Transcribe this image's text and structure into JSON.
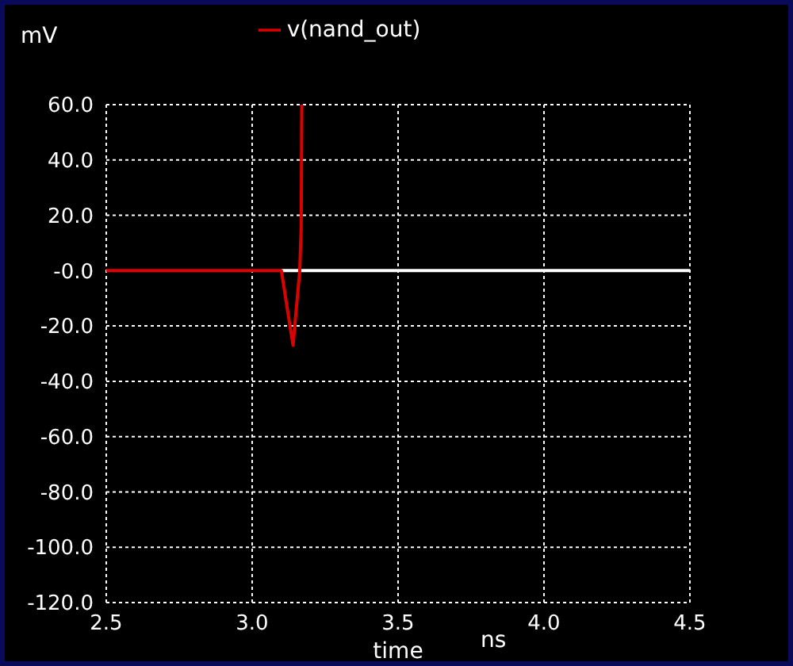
{
  "chart_data": {
    "type": "line",
    "ylabel": "mV",
    "xlabel": "time",
    "annotations": [
      "ns"
    ],
    "series": [
      {
        "color": "#ffffff",
        "x": [
          3.1,
          4.5
        ],
        "values": [
          0,
          0
        ]
      },
      {
        "name": "v(nand_out)",
        "color": "#dd0000",
        "x": [
          2.5,
          3.1,
          3.14,
          3.163,
          3.168,
          3.17
        ],
        "values": [
          0,
          0,
          -27,
          0,
          16,
          60
        ]
      }
    ],
    "xlim": [
      2.5,
      4.5
    ],
    "xticks": [
      {
        "value": 2.5,
        "label": "2.5"
      },
      {
        "value": 3,
        "label": "3.0"
      },
      {
        "value": 3.5,
        "label": "3.5"
      },
      {
        "value": 4,
        "label": "4.0"
      },
      {
        "value": 4.5,
        "label": "4.5"
      }
    ],
    "ylim": [
      -120,
      60
    ],
    "yticks": [
      {
        "value": -120,
        "label": "-120.0"
      },
      {
        "value": -100,
        "label": "-100.0"
      },
      {
        "value": -80,
        "label": "-80.0"
      },
      {
        "value": -60,
        "label": "-60.0"
      },
      {
        "value": -40,
        "label": "-40.0"
      },
      {
        "value": -20,
        "label": "-20.0"
      },
      {
        "value": 0,
        "label": "-0.0"
      },
      {
        "value": 20,
        "label": "20.0"
      },
      {
        "value": 40,
        "label": "40.0"
      },
      {
        "value": 60,
        "label": "60.0"
      }
    ],
    "grid": true,
    "legend": "top",
    "marker": "none",
    "line_style": "solid"
  }
}
